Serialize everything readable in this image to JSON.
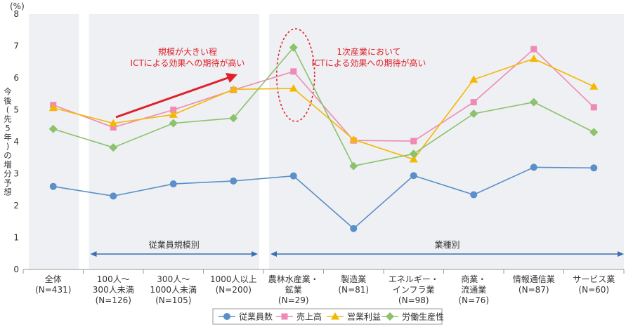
{
  "chart_data": {
    "type": "line",
    "unit_label": "(%)",
    "ylabel": "今後(先5年)の増分予想",
    "ylim": [
      0,
      8
    ],
    "yticks": [
      "0",
      "1",
      "2",
      "3",
      "4",
      "5",
      "6",
      "7",
      "8"
    ],
    "categories": [
      [
        "全体",
        "(N=431)"
      ],
      [
        "100人～",
        "300人未満",
        "(N=126)"
      ],
      [
        "300人～",
        "1000人未満",
        "(N=105)"
      ],
      [
        "1000人以上",
        "(N=200)"
      ],
      [
        "農林水産業・",
        "鉱業",
        "(N=29)"
      ],
      [
        "製造業",
        "(N=81)"
      ],
      [
        "エネルギー・",
        "インフラ業",
        "(N=98)"
      ],
      [
        "商業・",
        "流通業",
        "(N=76)"
      ],
      [
        "情報通信業",
        "(N=87)"
      ],
      [
        "サービス業",
        "(N=60)"
      ]
    ],
    "series": [
      {
        "name": "従業員数",
        "color": "#5b8fc9",
        "marker": "circle",
        "values": [
          2.6,
          2.3,
          2.68,
          2.77,
          2.93,
          1.28,
          2.94,
          2.34,
          3.2,
          3.18
        ]
      },
      {
        "name": "売上高",
        "color": "#ef8ab4",
        "marker": "square",
        "values": [
          5.15,
          4.45,
          5.0,
          5.62,
          6.2,
          4.04,
          4.02,
          5.24,
          6.9,
          5.08
        ]
      },
      {
        "name": "営業利益",
        "color": "#f5b800",
        "marker": "triangle",
        "values": [
          5.06,
          4.58,
          4.85,
          5.64,
          5.67,
          4.07,
          3.45,
          5.95,
          6.6,
          5.73
        ]
      },
      {
        "name": "労働生産性",
        "color": "#8cc26b",
        "marker": "diamond",
        "values": [
          4.4,
          3.82,
          4.58,
          4.74,
          6.95,
          3.24,
          3.62,
          4.88,
          5.24,
          4.3
        ]
      }
    ],
    "group_labels": {
      "size": "従業員規模別",
      "industry": "業種別"
    },
    "annotations": {
      "size_note": [
        "規模が大きい程",
        "ICTによる効果への期待が高い"
      ],
      "industry_note": [
        "1次産業において",
        "ICTによる効果への期待が高い"
      ]
    },
    "annotation_color": "#e0202a",
    "legend_position": "bottom",
    "grid": false
  }
}
